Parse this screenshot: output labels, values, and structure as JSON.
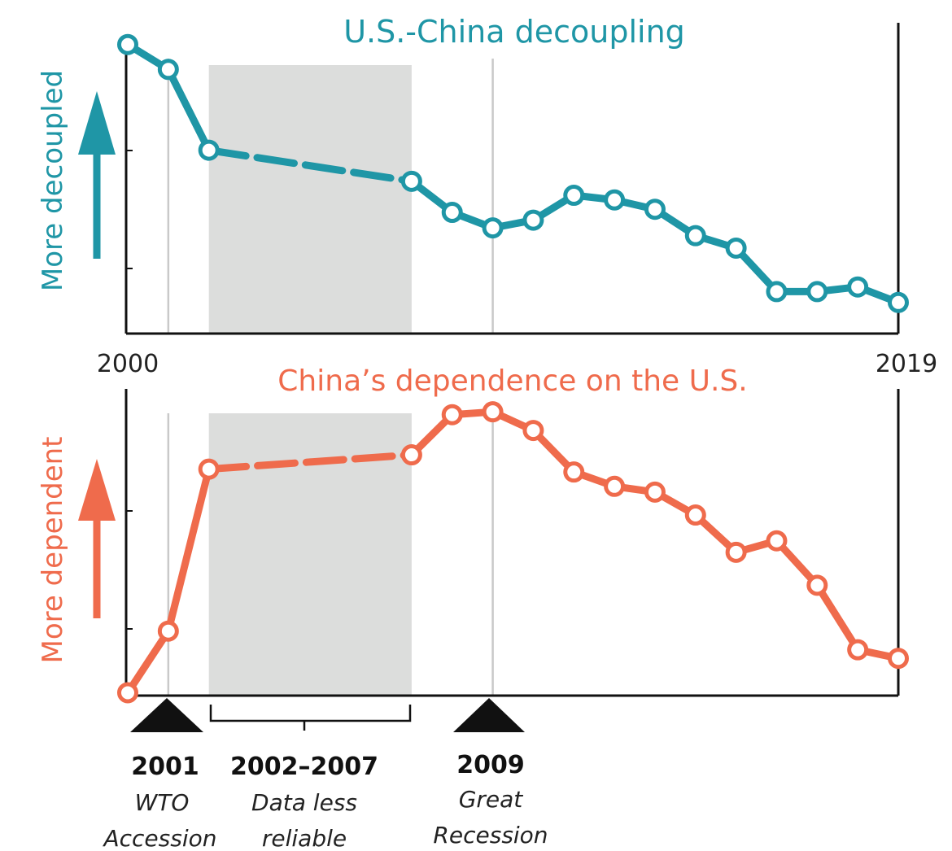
{
  "chart_data": [
    {
      "type": "line",
      "title": "U.S.-China decoupling",
      "ylabel": "More decoupled",
      "x": [
        2000,
        2001,
        2002,
        2007,
        2008,
        2009,
        2010,
        2011,
        2012,
        2013,
        2014,
        2015,
        2016,
        2017,
        2018,
        2019
      ],
      "values": [
        100,
        92,
        66,
        56,
        46,
        41,
        43.5,
        51.5,
        50,
        47,
        38.5,
        34.5,
        20.5,
        20.5,
        22,
        17
      ],
      "ylim": [
        7,
        107
      ],
      "dashed_segment": [
        2002,
        2007
      ],
      "color": "#1f96a6"
    },
    {
      "type": "line",
      "title": "China’s dependence on the U.S.",
      "ylabel": "More dependent",
      "x": [
        2000,
        2001,
        2002,
        2007,
        2008,
        2009,
        2010,
        2011,
        2012,
        2013,
        2014,
        2015,
        2016,
        2017,
        2018,
        2019
      ],
      "values": [
        0,
        21.5,
        78,
        83,
        97,
        98,
        91.5,
        77,
        72,
        70,
        62,
        49,
        53,
        37.5,
        15,
        12
      ],
      "ylim": [
        -1,
        106
      ],
      "dashed_segment": [
        2002,
        2007
      ],
      "color": "#ef6b4c"
    }
  ],
  "axis": {
    "start_label": "2000",
    "end_label": "2019",
    "xlim": [
      2000,
      2019
    ]
  },
  "events": [
    {
      "year": 2001,
      "label": "2001",
      "desc": [
        "WTO",
        "Accession"
      ],
      "marker": "triangle"
    },
    {
      "year": 2009,
      "label": "2009",
      "desc": [
        "Great",
        "Recession"
      ],
      "marker": "triangle"
    }
  ],
  "shaded_period": {
    "start": 2002,
    "end": 2007,
    "label": "2002–2007",
    "desc": [
      "Data less",
      "reliable"
    ]
  },
  "colors": {
    "decoupling": "#1f96a6",
    "dependence": "#ef6b4c",
    "shade": "#dcdddc",
    "axis": "#111111"
  }
}
